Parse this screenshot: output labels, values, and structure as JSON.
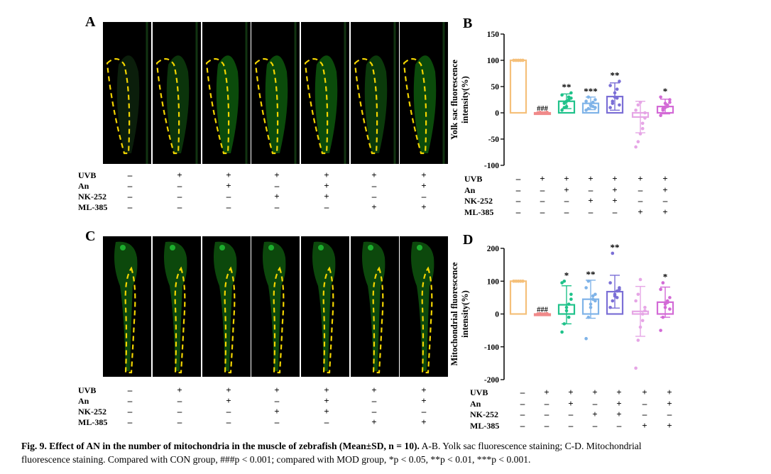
{
  "panels": {
    "A": "A",
    "B": "B",
    "C": "C",
    "D": "D"
  },
  "treatments": {
    "labels": [
      "UVB",
      "An",
      "NK-252",
      "ML-385"
    ],
    "columns": [
      [
        "–",
        "–",
        "–",
        "–"
      ],
      [
        "+",
        "–",
        "–",
        "–"
      ],
      [
        "+",
        "+",
        "–",
        "–"
      ],
      [
        "+",
        "–",
        "+",
        "–"
      ],
      [
        "+",
        "+",
        "+",
        "–"
      ],
      [
        "+",
        "–",
        "–",
        "+"
      ],
      [
        "+",
        "+",
        "–",
        "+"
      ]
    ]
  },
  "colors": [
    "#f5c07a",
    "#f08a8a",
    "#1fc28a",
    "#7fb3e8",
    "#7b6fd6",
    "#e6a6e6",
    "#d36ad6"
  ],
  "chart_data": [
    {
      "type": "bar",
      "panel": "B",
      "ylabel": "Yolk sac fluorescence intensity(%)",
      "ylim": [
        -100,
        150
      ],
      "yticks": [
        -100,
        -50,
        0,
        50,
        100,
        150
      ],
      "values": [
        100,
        0,
        22,
        18,
        31,
        -8,
        12
      ],
      "errors": [
        0,
        0,
        14,
        12,
        26,
        30,
        14
      ],
      "annotations": [
        "",
        "###",
        "**",
        "***",
        "**",
        "",
        "*"
      ],
      "points": [
        [
          100,
          100,
          100,
          100,
          100,
          100,
          100,
          100,
          100,
          100
        ],
        [
          0,
          1,
          -1,
          0,
          1,
          0,
          -1,
          0,
          0,
          1
        ],
        [
          5,
          10,
          22,
          30,
          38,
          34,
          18,
          12,
          25,
          28
        ],
        [
          5,
          8,
          14,
          20,
          25,
          22,
          30,
          16,
          12,
          10
        ],
        [
          10,
          18,
          30,
          45,
          60,
          52,
          22,
          38,
          28,
          15
        ],
        [
          -65,
          -55,
          -40,
          -20,
          -10,
          5,
          15,
          20,
          -30,
          0
        ],
        [
          -5,
          5,
          10,
          15,
          25,
          30,
          8,
          18,
          12,
          20
        ]
      ]
    },
    {
      "type": "bar",
      "panel": "D",
      "ylabel": "Mitochondrial fluorescence intensity(%)",
      "ylim": [
        -200,
        200
      ],
      "yticks": [
        -200,
        -100,
        0,
        100,
        200
      ],
      "values": [
        100,
        0,
        28,
        45,
        68,
        8,
        36
      ],
      "errors": [
        0,
        0,
        58,
        58,
        50,
        76,
        46
      ],
      "annotations": [
        "",
        "###",
        "*",
        "**",
        "**",
        "",
        "*"
      ],
      "points": [
        [
          100,
          100,
          100,
          100,
          100,
          100,
          100,
          100,
          100,
          100
        ],
        [
          0,
          1,
          -1,
          0,
          1,
          0,
          -1,
          0,
          0,
          1
        ],
        [
          -55,
          -30,
          10,
          30,
          60,
          95,
          100,
          20,
          -10,
          45
        ],
        [
          -75,
          -10,
          20,
          45,
          60,
          80,
          100,
          30,
          55,
          40
        ],
        [
          20,
          40,
          55,
          70,
          80,
          95,
          185,
          60,
          50,
          75
        ],
        [
          -165,
          -80,
          -40,
          0,
          20,
          40,
          60,
          105,
          -20,
          10
        ],
        [
          -50,
          -10,
          20,
          35,
          50,
          75,
          95,
          30,
          40,
          15
        ]
      ]
    }
  ],
  "caption": {
    "bold": "Fig. 9. Effect of AN in the number of mitochondria in the muscle of zebrafish (Mean±SD, n = 10).",
    "text1": " A-B. Yolk sac fluorescence staining; C-D. Mitochondrial",
    "line2": "fluorescence staining. Compared with CON group, ###p < 0.001; compared with MOD group, *p < 0.05, **p < 0.01, ***p < 0.001."
  }
}
